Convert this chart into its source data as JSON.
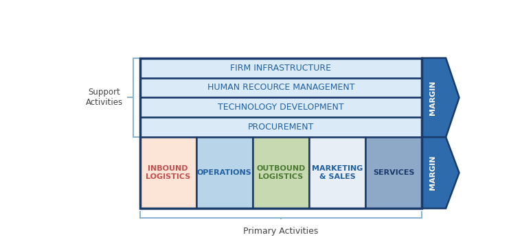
{
  "fig_width": 7.6,
  "fig_height": 3.59,
  "dpi": 100,
  "bg_color": "#ffffff",
  "support_activities": [
    {
      "label": "FIRM INFRASTRUCTURE",
      "color": "#daeaf7",
      "border": "#1a3a6b"
    },
    {
      "label": "HUMAN RECOURCE MANAGEMENT",
      "color": "#daeaf7",
      "border": "#1a3a6b"
    },
    {
      "label": "TECHNOLOGY DEVELOPMENT",
      "color": "#daeaf7",
      "border": "#1a3a6b"
    },
    {
      "label": "PROCUREMENT",
      "color": "#daeaf7",
      "border": "#1a3a6b"
    }
  ],
  "primary_activities": [
    {
      "label": "INBOUND\nLOGISTICS",
      "color": "#fce4d6",
      "border": "#1a3a6b",
      "text_color": "#c0504d"
    },
    {
      "label": "OPERATIONS",
      "color": "#b8d4e8",
      "border": "#1a3a6b",
      "text_color": "#2060a0"
    },
    {
      "label": "OUTBOUND\nLOGISTICS",
      "color": "#c6d9b0",
      "border": "#1a3a6b",
      "text_color": "#4a7a30"
    },
    {
      "label": "MARKETING\n& SALES",
      "color": "#e8eef5",
      "border": "#1a3a6b",
      "text_color": "#2060a0"
    },
    {
      "label": "SERVICES",
      "color": "#8ea9c8",
      "border": "#1a3a6b",
      "text_color": "#1a3a6b"
    }
  ],
  "support_text_color": "#2060a0",
  "support_label_left": "Support\nActivities",
  "primary_label_bottom": "Primary Activities",
  "main_border_color": "#1a3a6b",
  "margin_fill_color": "#2e6bad",
  "margin_border_color": "#1a3a6b",
  "bracket_color": "#8ab4d4"
}
